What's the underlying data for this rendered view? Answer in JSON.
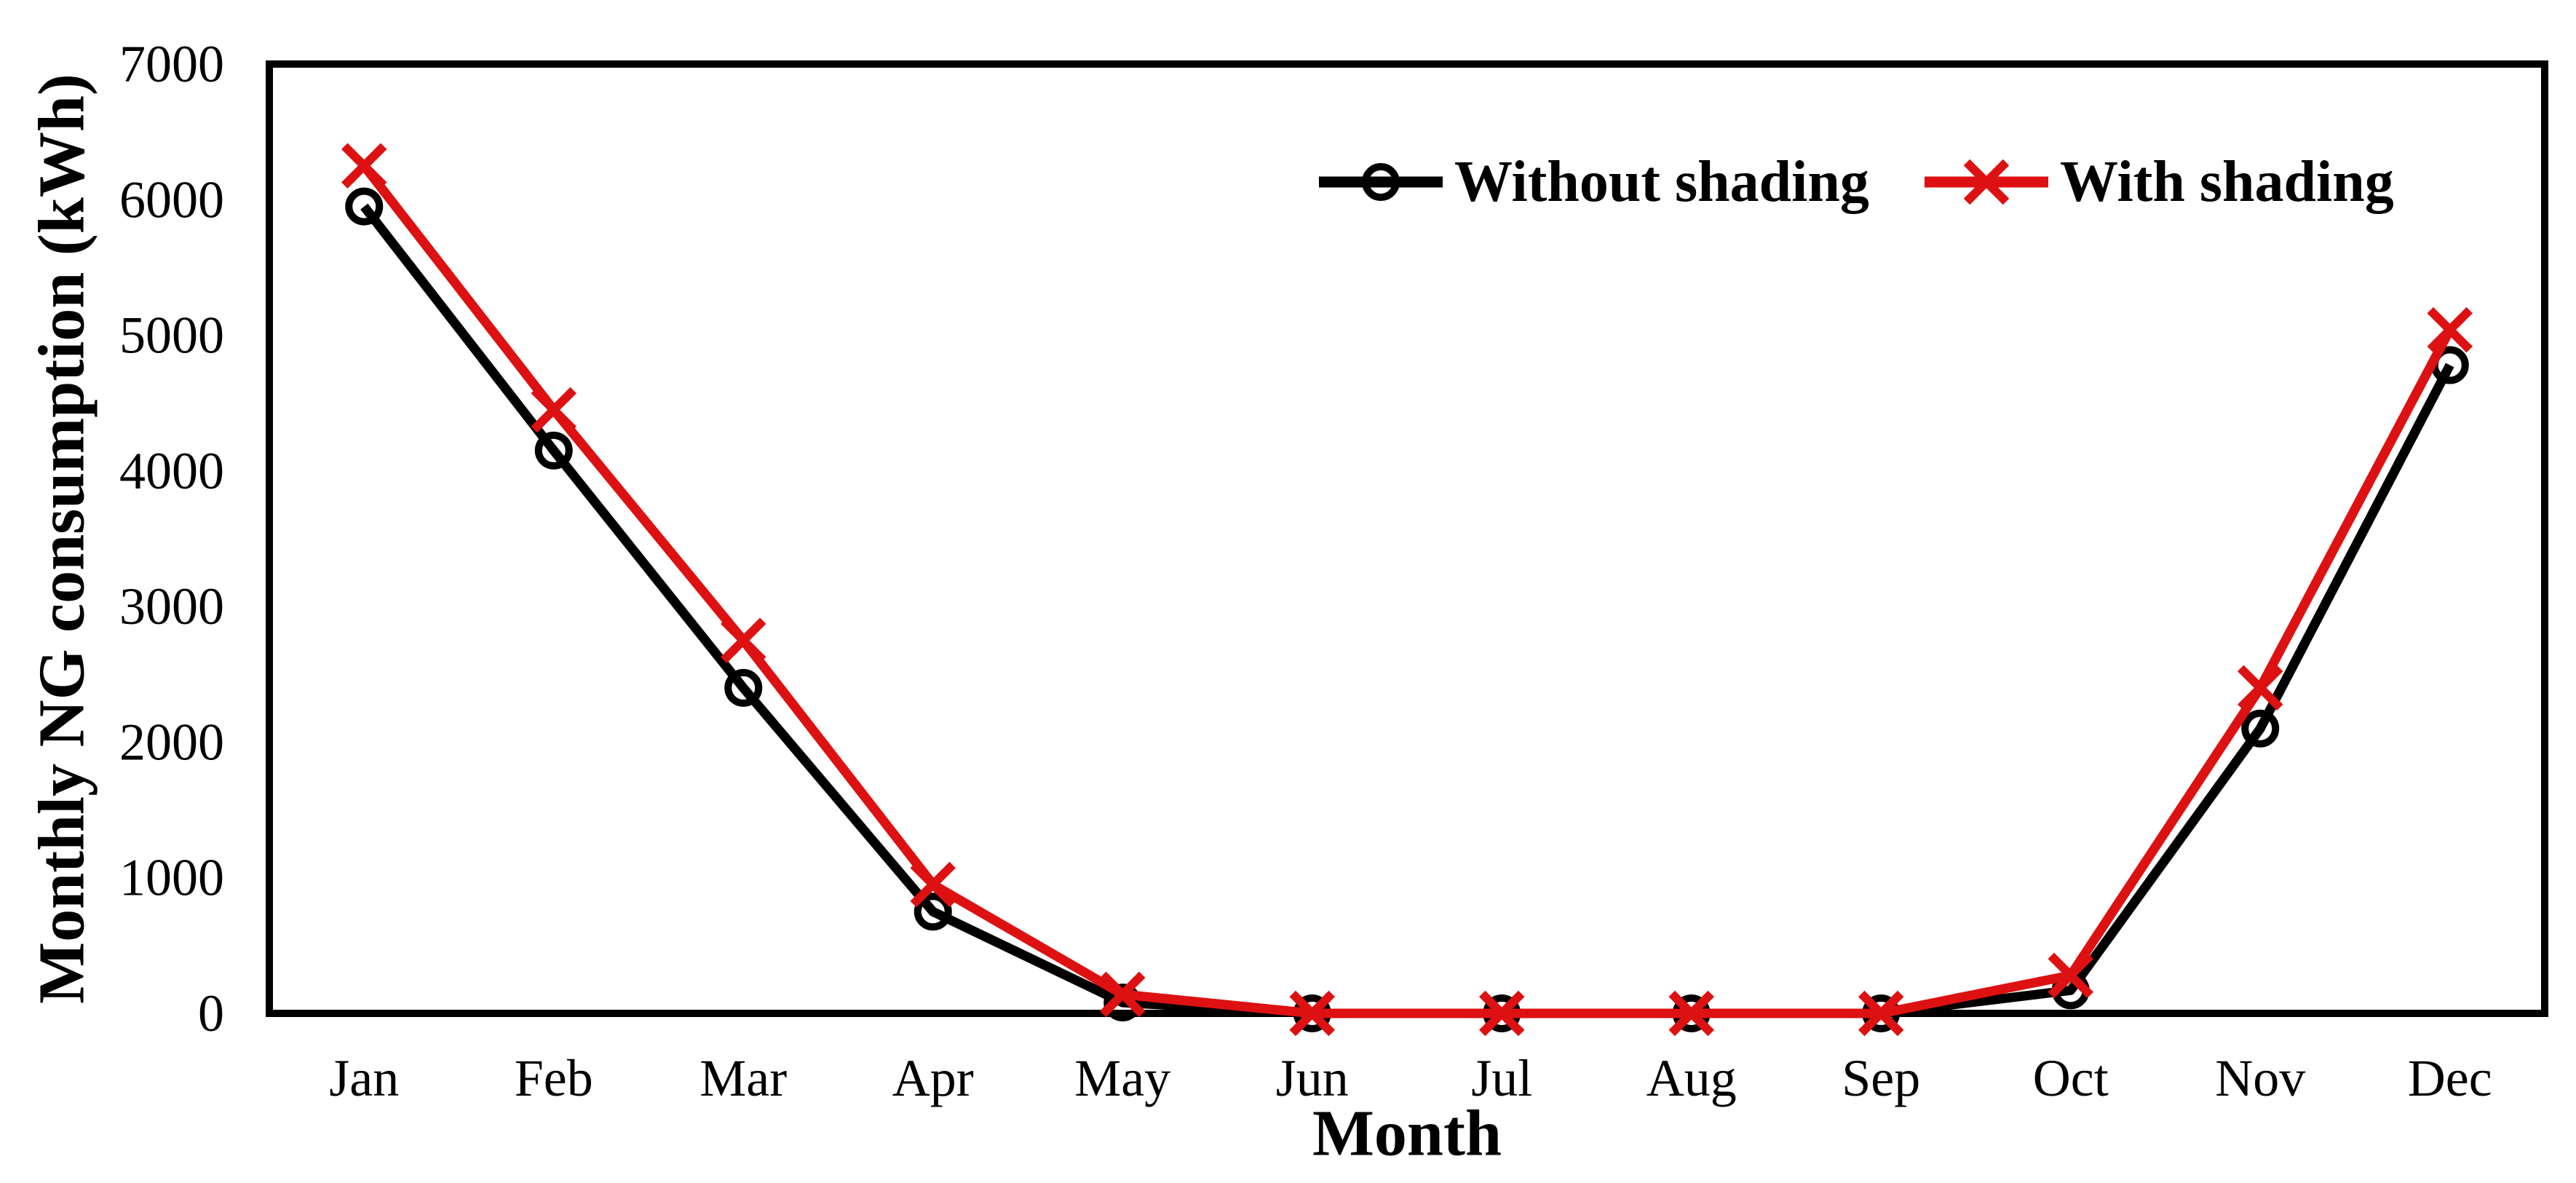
{
  "chart_data": {
    "type": "line",
    "title": "",
    "xlabel": "Month",
    "ylabel": "Monthly NG consumption (kWh)",
    "ylim": [
      0,
      7000
    ],
    "ytick_step": 1000,
    "yticks": [
      0,
      1000,
      2000,
      3000,
      4000,
      5000,
      6000,
      7000
    ],
    "grid": false,
    "legend_position": "top-center-inside",
    "categories": [
      "Jan",
      "Feb",
      "Mar",
      "Apr",
      "May",
      "Jun",
      "Jul",
      "Aug",
      "Sep",
      "Oct",
      "Nov",
      "Dec"
    ],
    "series": [
      {
        "name": "Without shading",
        "color": "#000000",
        "marker": "circle",
        "values": [
          5950,
          4150,
          2400,
          750,
          80,
          0,
          0,
          0,
          0,
          170,
          2100,
          4780
        ]
      },
      {
        "name": "With shading",
        "color": "#DD1111",
        "marker": "x",
        "values": [
          6250,
          4450,
          2750,
          950,
          140,
          0,
          0,
          0,
          0,
          280,
          2400,
          5040
        ]
      }
    ]
  },
  "colors": {
    "background": "#FFFFFF",
    "frame": "#000000",
    "text": "#000000"
  }
}
